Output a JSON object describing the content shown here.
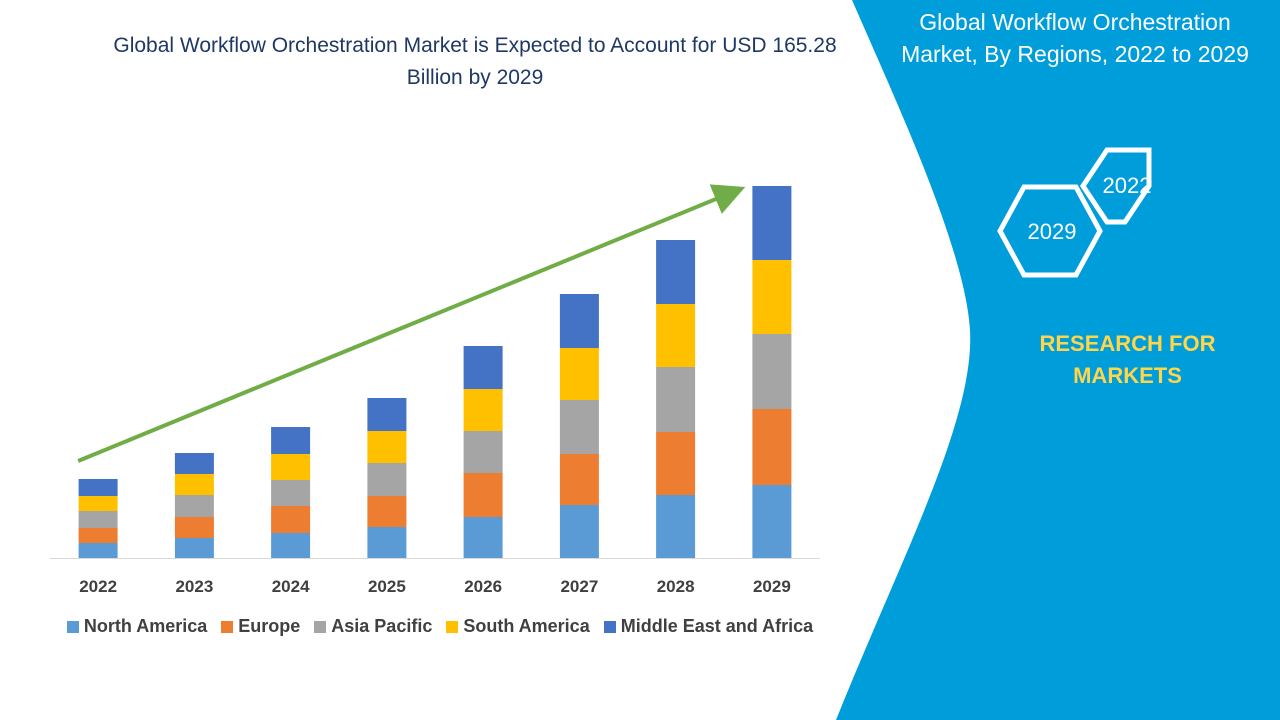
{
  "title": "Global Workflow Orchestration Market is Expected to Account for USD 165.28 Billion by 2029",
  "side_panel": {
    "title": "Global Workflow Orchestration Market, By Regions, 2022 to 2029",
    "hex_top": "2022",
    "hex_bottom": "2029",
    "brand": "RESEARCH FOR MARKETS",
    "colors": {
      "panel": "#009ddb",
      "brand_text": "#ffd54a"
    }
  },
  "chart_data": {
    "type": "bar",
    "stacked": true,
    "categories": [
      "2022",
      "2023",
      "2024",
      "2025",
      "2026",
      "2027",
      "2028",
      "2029"
    ],
    "series": [
      {
        "name": "North America",
        "color": "#5b9bd5",
        "values": [
          15,
          20,
          25,
          31,
          41,
          53,
          63,
          73
        ]
      },
      {
        "name": "Europe",
        "color": "#ed7d31",
        "values": [
          15,
          21,
          27,
          31,
          44,
          51,
          63,
          76
        ]
      },
      {
        "name": "Asia Pacific",
        "color": "#a5a5a5",
        "values": [
          17,
          22,
          26,
          33,
          42,
          54,
          65,
          75
        ]
      },
      {
        "name": "South America",
        "color": "#ffc000",
        "values": [
          15,
          21,
          26,
          32,
          42,
          52,
          63,
          74
        ]
      },
      {
        "name": "Middle East and Africa",
        "color": "#4472c4",
        "values": [
          17,
          21,
          27,
          33,
          43,
          54,
          64,
          74
        ]
      }
    ],
    "ylim": [
      0,
      375
    ],
    "grid": false,
    "legend_position": "bottom",
    "trend_arrow_color": "#70ad47"
  }
}
